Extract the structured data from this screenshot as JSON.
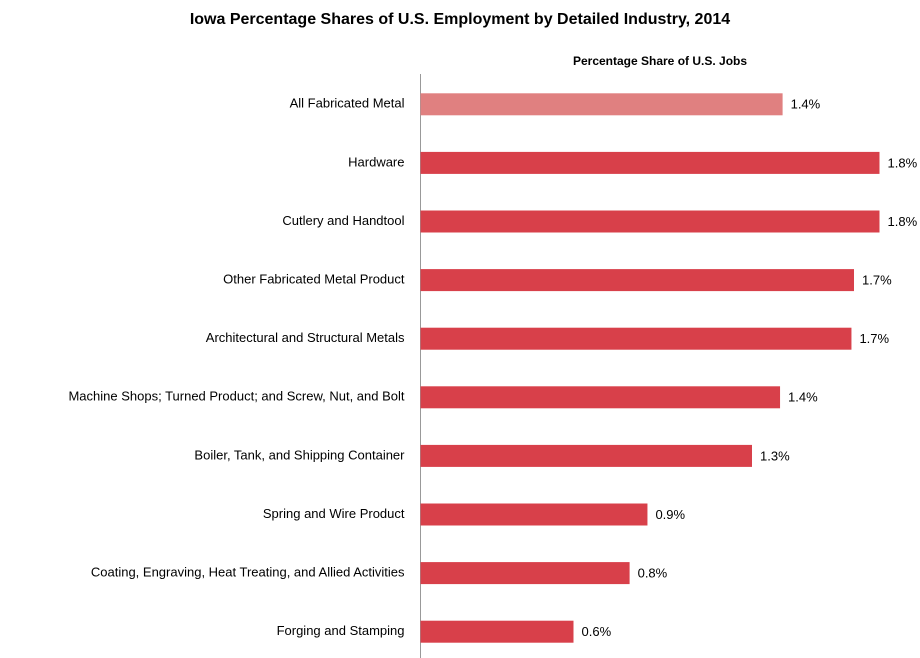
{
  "chart_data": {
    "type": "bar",
    "orientation": "horizontal",
    "title": "Iowa Percentage Shares of U.S. Employment by Detailed Industry, 2014",
    "xlabel": "Percentage Share of U.S. Jobs",
    "categories": [
      "All Fabricated Metal",
      "Hardware",
      "Cutlery and Handtool",
      "Other Fabricated Metal Product",
      "Architectural and Structural Metals",
      "Machine Shops; Turned Product; and Screw, Nut, and Bolt",
      "Boiler, Tank, and Shipping Container",
      "Spring and Wire Product",
      "Coating, Engraving, Heat Treating, and Allied Activities",
      "Forging and Stamping"
    ],
    "values": [
      1.42,
      1.8,
      1.8,
      1.7,
      1.69,
      1.41,
      1.3,
      0.89,
      0.82,
      0.6
    ],
    "value_labels": [
      "1.4%",
      "1.8%",
      "1.8%",
      "1.7%",
      "1.7%",
      "1.4%",
      "1.3%",
      "0.9%",
      "0.8%",
      "0.6%"
    ],
    "colors": [
      "#e08080",
      "#d8404a",
      "#d8404a",
      "#d8404a",
      "#d8404a",
      "#d8404a",
      "#d8404a",
      "#d8404a",
      "#d8404a",
      "#d8404a"
    ],
    "xlim": [
      0,
      1.9
    ]
  }
}
